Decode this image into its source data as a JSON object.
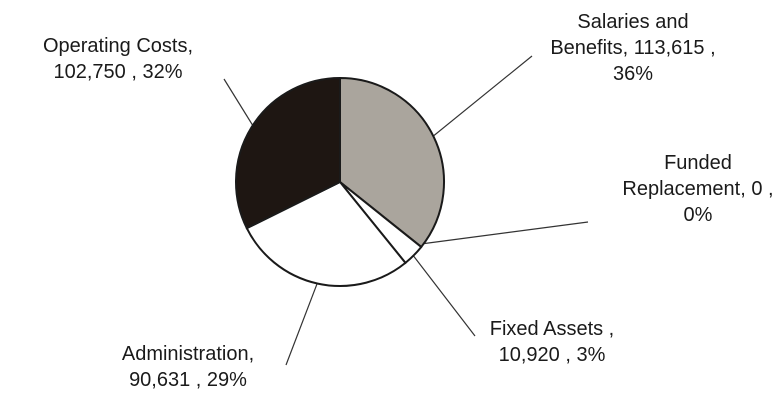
{
  "chart_data": {
    "type": "pie",
    "title": "",
    "start_angle_deg": 0,
    "direction": "clockwise",
    "slices": [
      {
        "category": "Salaries and Benefits",
        "value": 113615,
        "percent": 36,
        "color": "#aaa59d",
        "label_lines": [
          "Salaries and",
          "Benefits, 113,615 ,",
          "36%"
        ]
      },
      {
        "category": "Funded Replacement",
        "value": 0,
        "percent": 0,
        "color": "#f2f2f2",
        "label_lines": [
          "Funded",
          "Replacement, 0 ,",
          "0%"
        ]
      },
      {
        "category": "Fixed Assets",
        "value": 10920,
        "percent": 3,
        "color": "#ffffff",
        "label_lines": [
          "Fixed Assets ,",
          "10,920 , 3%"
        ]
      },
      {
        "category": "Administration",
        "value": 90631,
        "percent": 29,
        "color": "#ffffff",
        "label_lines": [
          "Administration,",
          "90,631 , 29%"
        ]
      },
      {
        "category": "Operating Costs",
        "value": 102750,
        "percent": 32,
        "color": "#1e1612",
        "label_lines": [
          "Operating Costs,",
          "102,750 , 32%"
        ]
      }
    ]
  }
}
